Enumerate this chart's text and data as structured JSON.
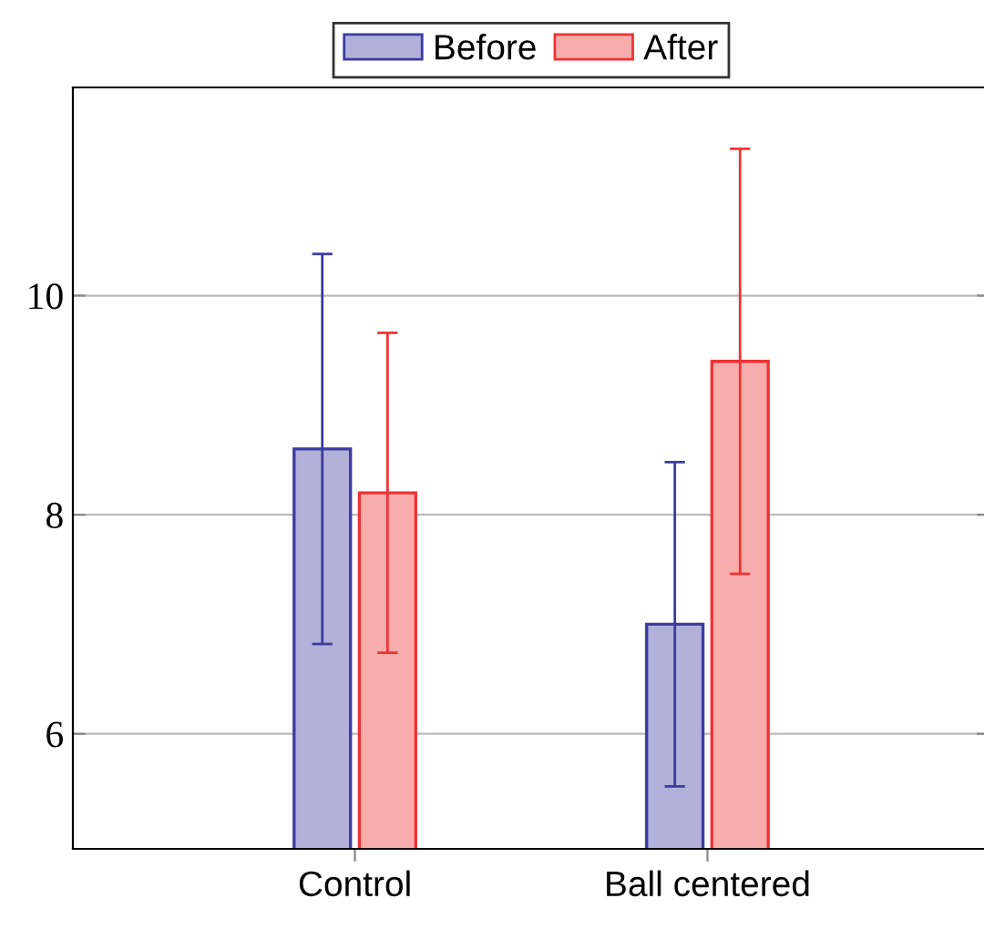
{
  "chart_data": {
    "type": "bar",
    "categories": [
      "Control",
      "Ball centered"
    ],
    "series": [
      {
        "name": "Before",
        "color": "#3b3ba0",
        "values": [
          8.6,
          7.0
        ],
        "errors": [
          1.78,
          1.48
        ]
      },
      {
        "name": "After",
        "color": "#ee3333",
        "values": [
          8.2,
          9.4
        ],
        "errors": [
          1.46,
          1.94
        ]
      }
    ],
    "ylim": [
      4.95,
      11.9
    ],
    "yticks": [
      6,
      8,
      10
    ],
    "grid": "y",
    "legend": "top"
  }
}
